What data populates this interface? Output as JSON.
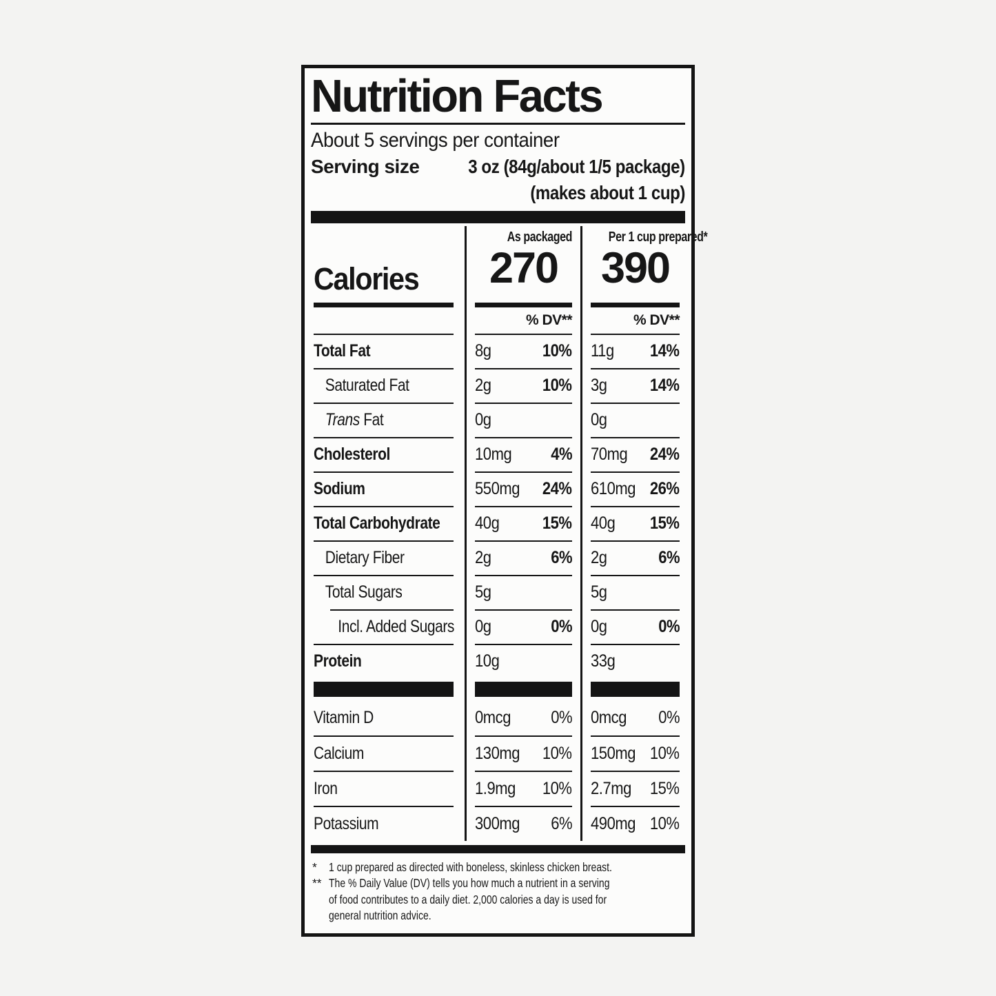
{
  "page_bg": "#f3f3f2",
  "ink_color": "#141414",
  "label": {
    "title": "Nutrition Facts",
    "servings_per_container": "About 5 servings per container",
    "serving_size_label": "Serving size",
    "serving_size_value": "3 oz (84g/about 1/5 package)",
    "serving_size_note": "(makes about 1 cup)",
    "column_headers": {
      "as_packaged": "As packaged",
      "prepared": "Per 1 cup prepared*"
    },
    "calories": {
      "label": "Calories",
      "as_packaged": "270",
      "prepared": "390"
    },
    "dv_header": "% DV**",
    "nutrient_rows": [
      {
        "label": "Total Fat",
        "bold": true,
        "indent": 0,
        "packaged": {
          "amount": "8g",
          "dv": "10%"
        },
        "prepared": {
          "amount": "11g",
          "dv": "14%"
        }
      },
      {
        "label": "Saturated Fat",
        "bold": false,
        "indent": 1,
        "packaged": {
          "amount": "2g",
          "dv": "10%"
        },
        "prepared": {
          "amount": "3g",
          "dv": "14%"
        }
      },
      {
        "label_italic": "Trans",
        "label": " Fat",
        "bold": false,
        "indent": 1,
        "packaged": {
          "amount": "0g",
          "dv": ""
        },
        "prepared": {
          "amount": "0g",
          "dv": ""
        }
      },
      {
        "label": "Cholesterol",
        "bold": true,
        "indent": 0,
        "packaged": {
          "amount": "10mg",
          "dv": "4%"
        },
        "prepared": {
          "amount": "70mg",
          "dv": "24%"
        }
      },
      {
        "label": "Sodium",
        "bold": true,
        "indent": 0,
        "packaged": {
          "amount": "550mg",
          "dv": "24%"
        },
        "prepared": {
          "amount": "610mg",
          "dv": "26%"
        }
      },
      {
        "label": "Total Carbohydrate",
        "bold": true,
        "indent": 0,
        "packaged": {
          "amount": "40g",
          "dv": "15%"
        },
        "prepared": {
          "amount": "40g",
          "dv": "15%"
        }
      },
      {
        "label": "Dietary Fiber",
        "bold": false,
        "indent": 1,
        "packaged": {
          "amount": "2g",
          "dv": "6%"
        },
        "prepared": {
          "amount": "2g",
          "dv": "6%"
        }
      },
      {
        "label": "Total Sugars",
        "bold": false,
        "indent": 1,
        "packaged": {
          "amount": "5g",
          "dv": ""
        },
        "prepared": {
          "amount": "5g",
          "dv": ""
        }
      },
      {
        "label": "Incl. Added Sugars",
        "bold": false,
        "indent": 2,
        "packaged": {
          "amount": "0g",
          "dv": "0%"
        },
        "prepared": {
          "amount": "0g",
          "dv": "0%"
        }
      },
      {
        "label": "Protein",
        "bold": true,
        "indent": 0,
        "packaged": {
          "amount": "10g",
          "dv": ""
        },
        "prepared": {
          "amount": "33g",
          "dv": ""
        }
      }
    ],
    "vitamin_rows": [
      {
        "label": "Vitamin D",
        "packaged": {
          "amount": "0mcg",
          "dv": "0%"
        },
        "prepared": {
          "amount": "0mcg",
          "dv": "0%"
        }
      },
      {
        "label": "Calcium",
        "packaged": {
          "amount": "130mg",
          "dv": "10%"
        },
        "prepared": {
          "amount": "150mg",
          "dv": "10%"
        }
      },
      {
        "label": "Iron",
        "packaged": {
          "amount": "1.9mg",
          "dv": "10%"
        },
        "prepared": {
          "amount": "2.7mg",
          "dv": "15%"
        }
      },
      {
        "label": "Potassium",
        "packaged": {
          "amount": "300mg",
          "dv": "6%"
        },
        "prepared": {
          "amount": "490mg",
          "dv": "10%"
        }
      }
    ],
    "footnotes": [
      {
        "marker": "*",
        "text": "1 cup prepared as directed with boneless, skinless chicken breast."
      },
      {
        "marker": "**",
        "text": "The % Daily Value (DV) tells you how much a nutrient in a serving of food contributes to a daily diet. 2,000 calories a day is used for general nutrition advice."
      }
    ]
  }
}
